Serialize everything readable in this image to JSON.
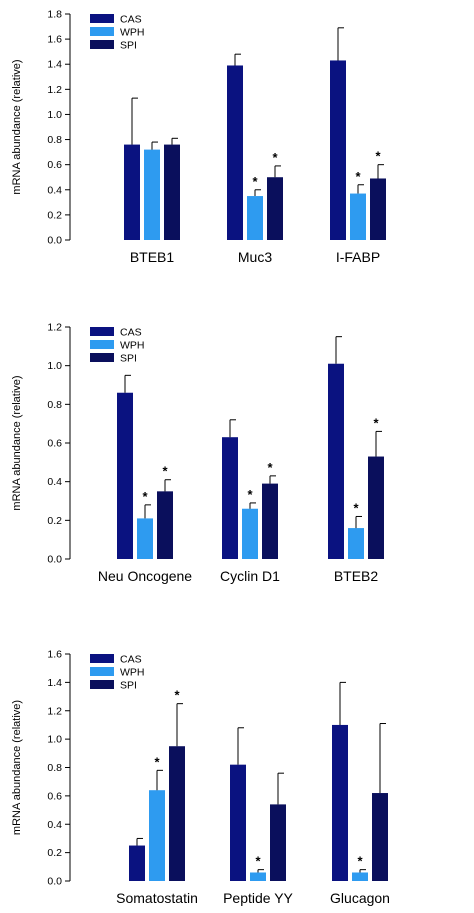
{
  "chart_data": [
    {
      "type": "bar",
      "ylabel": "mRNA abundance (relative)",
      "ylim": [
        0,
        1.8
      ],
      "yticks": [
        "0.0",
        "0.2",
        "0.4",
        "0.6",
        "0.8",
        "1.0",
        "1.2",
        "1.4",
        "1.6",
        "1.8"
      ],
      "categories": [
        "BTEB1",
        "Muc3",
        "I-FABP"
      ],
      "legend_position": "top-left",
      "series": [
        {
          "name": "CAS",
          "color": "#0a1280",
          "values": [
            0.76,
            1.39,
            1.43
          ],
          "errors": [
            0.37,
            0.09,
            0.26
          ],
          "significant": [
            false,
            false,
            false
          ]
        },
        {
          "name": "WPH",
          "color": "#2e9bf0",
          "values": [
            0.72,
            0.35,
            0.37
          ],
          "errors": [
            0.06,
            0.05,
            0.07
          ],
          "significant": [
            false,
            true,
            true
          ]
        },
        {
          "name": "SPI",
          "color": "#0a0f5c",
          "values": [
            0.76,
            0.5,
            0.49
          ],
          "errors": [
            0.05,
            0.09,
            0.11
          ],
          "significant": [
            false,
            true,
            true
          ]
        }
      ],
      "significance_marker": "*"
    },
    {
      "type": "bar",
      "ylabel": "mRNA abundance (relative)",
      "ylim": [
        0,
        1.2
      ],
      "yticks": [
        "0.0",
        "0.2",
        "0.4",
        "0.6",
        "0.8",
        "1.0",
        "1.2"
      ],
      "categories": [
        "Neu Oncogene",
        "Cyclin D1",
        "BTEB2"
      ],
      "legend_position": "top-left",
      "series": [
        {
          "name": "CAS",
          "color": "#0a1280",
          "values": [
            0.86,
            0.63,
            1.01
          ],
          "errors": [
            0.09,
            0.09,
            0.14
          ],
          "significant": [
            false,
            false,
            false
          ]
        },
        {
          "name": "WPH",
          "color": "#2e9bf0",
          "values": [
            0.21,
            0.26,
            0.16
          ],
          "errors": [
            0.07,
            0.03,
            0.06
          ],
          "significant": [
            true,
            true,
            true
          ]
        },
        {
          "name": "SPI",
          "color": "#0a0f5c",
          "values": [
            0.35,
            0.39,
            0.53
          ],
          "errors": [
            0.06,
            0.04,
            0.13
          ],
          "significant": [
            true,
            true,
            true
          ]
        }
      ],
      "significance_marker": "*"
    },
    {
      "type": "bar",
      "ylabel": "mRNA abundance (relative)",
      "ylim": [
        0,
        1.6
      ],
      "yticks": [
        "0.0",
        "0.2",
        "0.4",
        "0.6",
        "0.8",
        "1.0",
        "1.2",
        "1.4",
        "1.6"
      ],
      "categories": [
        "Somatostatin",
        "Peptide YY",
        "Glucagon"
      ],
      "legend_position": "top-left",
      "series": [
        {
          "name": "CAS",
          "color": "#0a1280",
          "values": [
            0.25,
            0.82,
            1.1
          ],
          "errors": [
            0.05,
            0.26,
            0.3
          ],
          "significant": [
            false,
            false,
            false
          ]
        },
        {
          "name": "WPH",
          "color": "#2e9bf0",
          "values": [
            0.64,
            0.06,
            0.06
          ],
          "errors": [
            0.14,
            0.02,
            0.02
          ],
          "significant": [
            true,
            true,
            true
          ]
        },
        {
          "name": "SPI",
          "color": "#0a0f5c",
          "values": [
            0.95,
            0.54,
            0.62
          ],
          "errors": [
            0.3,
            0.22,
            0.49
          ],
          "significant": [
            true,
            false,
            false
          ]
        }
      ],
      "significance_marker": "*"
    }
  ]
}
